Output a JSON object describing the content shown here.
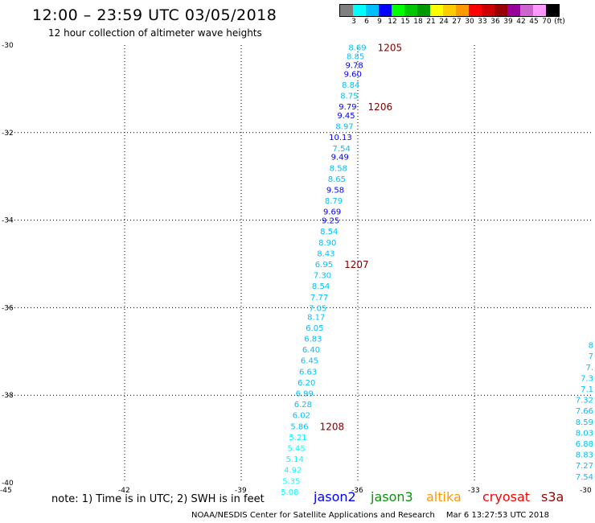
{
  "header": {
    "title": "12:00 – 23:59 UTC 03/05/2018",
    "subtitle": "12 hour collection of altimeter wave heights"
  },
  "legend": {
    "colors": [
      "#808080",
      "#00ffff",
      "#00bfff",
      "#0000ff",
      "#00ff00",
      "#00c800",
      "#009900",
      "#ffff00",
      "#ffcc00",
      "#ff9900",
      "#ff0000",
      "#cc0000",
      "#990000",
      "#990099",
      "#cc66cc",
      "#ff99ff",
      "#000000"
    ],
    "labels": [
      "3",
      "6",
      "9",
      "12",
      "15",
      "18",
      "21",
      "24",
      "27",
      "30",
      "33",
      "36",
      "39",
      "42",
      "45",
      "70",
      "(ft)"
    ]
  },
  "map": {
    "lat_labels": [
      "-30",
      "-32",
      "-34",
      "-36",
      "-38",
      "-40"
    ],
    "lon_labels": [
      "-45",
      "-42",
      "-39",
      "-36",
      "-33",
      "-30"
    ],
    "track_main": [
      {
        "lat": -30.05,
        "lon": -35.78,
        "value": "8.69",
        "color": "#00bfff"
      },
      {
        "lat": -30.25,
        "lon": -35.83,
        "value": "8.85",
        "color": "#00bfff"
      },
      {
        "lat": -30.45,
        "lon": -35.86,
        "value": "9.78",
        "color": "#0000ff"
      },
      {
        "lat": -30.65,
        "lon": -35.9,
        "value": "9.60",
        "color": "#0000ff"
      },
      {
        "lat": -30.9,
        "lon": -35.95,
        "value": "8.84",
        "color": "#00bfff"
      },
      {
        "lat": -31.15,
        "lon": -35.99,
        "value": "8.75",
        "color": "#00bfff"
      },
      {
        "lat": -31.4,
        "lon": -36.03,
        "value": "9.79",
        "color": "#0000ff"
      },
      {
        "lat": -31.6,
        "lon": -36.07,
        "value": "9.45",
        "color": "#0000ff"
      },
      {
        "lat": -31.85,
        "lon": -36.11,
        "value": "8.97",
        "color": "#00bfff"
      },
      {
        "lat": -32.1,
        "lon": -36.15,
        "value": "10.13",
        "color": "#0000ff"
      },
      {
        "lat": -32.35,
        "lon": -36.19,
        "value": "7.54",
        "color": "#00bfff"
      },
      {
        "lat": -32.55,
        "lon": -36.23,
        "value": "9.49",
        "color": "#0000ff"
      },
      {
        "lat": -32.8,
        "lon": -36.27,
        "value": "8.58",
        "color": "#00bfff"
      },
      {
        "lat": -33.05,
        "lon": -36.31,
        "value": "8.65",
        "color": "#00bfff"
      },
      {
        "lat": -33.3,
        "lon": -36.35,
        "value": "9.58",
        "color": "#0000ff"
      },
      {
        "lat": -33.55,
        "lon": -36.39,
        "value": "8.79",
        "color": "#00bfff"
      },
      {
        "lat": -33.8,
        "lon": -36.43,
        "value": "9.69",
        "color": "#0000ff"
      },
      {
        "lat": -34.0,
        "lon": -36.47,
        "value": "9.25",
        "color": "#0000ff"
      },
      {
        "lat": -34.25,
        "lon": -36.51,
        "value": "8.54",
        "color": "#00bfff"
      },
      {
        "lat": -34.5,
        "lon": -36.55,
        "value": "8.90",
        "color": "#00bfff"
      },
      {
        "lat": -34.75,
        "lon": -36.59,
        "value": "8.43",
        "color": "#00bfff"
      },
      {
        "lat": -35.0,
        "lon": -36.64,
        "value": "6.95",
        "color": "#00bfff"
      },
      {
        "lat": -35.25,
        "lon": -36.68,
        "value": "7.30",
        "color": "#00bfff"
      },
      {
        "lat": -35.5,
        "lon": -36.72,
        "value": "8.54",
        "color": "#00bfff"
      },
      {
        "lat": -35.75,
        "lon": -36.76,
        "value": "7.77",
        "color": "#00bfff"
      },
      {
        "lat": -36.0,
        "lon": -36.8,
        "value": "7.05",
        "color": "#00bfff"
      },
      {
        "lat": -36.2,
        "lon": -36.84,
        "value": "8.17",
        "color": "#00bfff"
      },
      {
        "lat": -36.45,
        "lon": -36.88,
        "value": "6.05",
        "color": "#00bfff"
      },
      {
        "lat": -36.7,
        "lon": -36.92,
        "value": "6.83",
        "color": "#00bfff"
      },
      {
        "lat": -36.95,
        "lon": -36.97,
        "value": "6.40",
        "color": "#00bfff"
      },
      {
        "lat": -37.2,
        "lon": -37.01,
        "value": "6.45",
        "color": "#00bfff"
      },
      {
        "lat": -37.45,
        "lon": -37.05,
        "value": "6.63",
        "color": "#00bfff"
      },
      {
        "lat": -37.7,
        "lon": -37.09,
        "value": "6.20",
        "color": "#00bfff"
      },
      {
        "lat": -37.95,
        "lon": -37.14,
        "value": "6.99",
        "color": "#00bfff"
      },
      {
        "lat": -38.2,
        "lon": -37.18,
        "value": "6.28",
        "color": "#00bfff"
      },
      {
        "lat": -38.45,
        "lon": -37.22,
        "value": "6.02",
        "color": "#00bfff"
      },
      {
        "lat": -38.7,
        "lon": -37.27,
        "value": "5.86",
        "color": "#00bfff"
      },
      {
        "lat": -38.95,
        "lon": -37.31,
        "value": "5.21",
        "color": "#00ffff"
      },
      {
        "lat": -39.2,
        "lon": -37.35,
        "value": "5.45",
        "color": "#00ffff"
      },
      {
        "lat": -39.45,
        "lon": -37.39,
        "value": "5.14",
        "color": "#00ffff"
      },
      {
        "lat": -39.7,
        "lon": -37.44,
        "value": "4.92",
        "color": "#00ffff"
      },
      {
        "lat": -39.95,
        "lon": -37.48,
        "value": "5.35",
        "color": "#00ffff"
      },
      {
        "lat": -40.2,
        "lon": -37.52,
        "value": "5.08",
        "color": "#00ffff"
      }
    ],
    "track_right": [
      {
        "lat": -36.85,
        "value": "8",
        "color": "#00bfff"
      },
      {
        "lat": -37.1,
        "value": "7",
        "color": "#00bfff"
      },
      {
        "lat": -37.35,
        "value": "7.",
        "color": "#00bfff"
      },
      {
        "lat": -37.6,
        "value": "7.3",
        "color": "#00bfff"
      },
      {
        "lat": -37.85,
        "value": "7.1",
        "color": "#00bfff"
      },
      {
        "lat": -38.1,
        "value": "7.32",
        "color": "#00bfff"
      },
      {
        "lat": -38.35,
        "value": "7.66",
        "color": "#00bfff"
      },
      {
        "lat": -38.6,
        "value": "8.59",
        "color": "#00bfff"
      },
      {
        "lat": -38.85,
        "value": "8.03",
        "color": "#00bfff"
      },
      {
        "lat": -39.1,
        "value": "6.88",
        "color": "#00bfff"
      },
      {
        "lat": -39.35,
        "value": "8.83",
        "color": "#00bfff"
      },
      {
        "lat": -39.6,
        "value": "7.27",
        "color": "#00bfff"
      },
      {
        "lat": -39.85,
        "value": "7.54",
        "color": "#00bfff"
      }
    ],
    "times": [
      {
        "label": "1205",
        "lat": -30.05
      },
      {
        "label": "1206",
        "lat": -31.4
      },
      {
        "label": "1207",
        "lat": -35.0
      },
      {
        "label": "1208",
        "lat": -38.7
      }
    ],
    "time_color": "#800000"
  },
  "note": "note: 1) Time is in UTC; 2) SWH is in feet",
  "satellites": [
    {
      "name": "jason2",
      "color": "#0000ff"
    },
    {
      "name": "jason3",
      "color": "#009900"
    },
    {
      "name": "altika",
      "color": "#ff9900"
    },
    {
      "name": "cryosat",
      "color": "#ff0000"
    },
    {
      "name": "s3a",
      "color": "#990000"
    }
  ],
  "footer": {
    "credit": "NOAA/NESDIS Center for Satellite Applications and Research",
    "timestamp": "Mar  6 13:27:53 UTC 2018"
  }
}
